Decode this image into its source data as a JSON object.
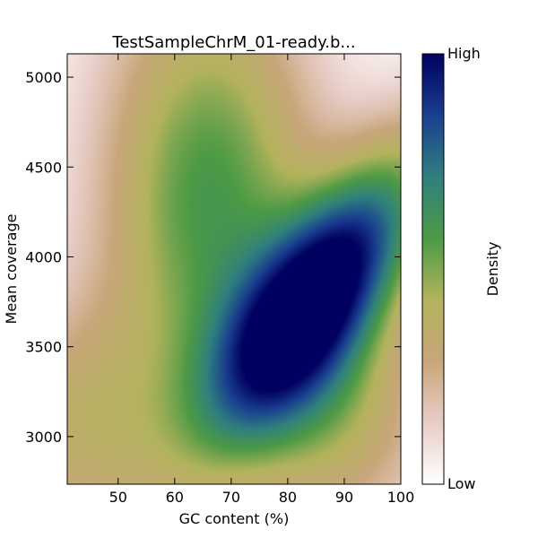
{
  "chart_data": {
    "type": "heatmap",
    "title": "TestSampleChrM_01-ready.b...",
    "xlabel": "GC content (%)",
    "ylabel": "Mean coverage",
    "xlim": [
      41,
      100
    ],
    "ylim": [
      2735,
      5130
    ],
    "xticks": [
      50,
      60,
      70,
      80,
      90,
      100
    ],
    "yticks": [
      3000,
      3500,
      4000,
      4500,
      5000
    ],
    "grid": false,
    "colorbar": {
      "label": "Density",
      "high_label": "High",
      "low_label": "Low",
      "colormap": [
        "#ffffff",
        "#e8cdc7",
        "#c8a67a",
        "#b3b35c",
        "#4c9a45",
        "#2f7f7f",
        "#1a3f8f",
        "#000060"
      ]
    },
    "peaks": [
      {
        "x": 85.5,
        "y": 3800,
        "relative_density": 1.0
      },
      {
        "x": 66,
        "y": 4350,
        "relative_density": 0.55
      },
      {
        "x": 88,
        "y": 3150,
        "relative_density": 0.35
      },
      {
        "x": 44,
        "y": 3050,
        "relative_density": 0.3
      }
    ]
  }
}
